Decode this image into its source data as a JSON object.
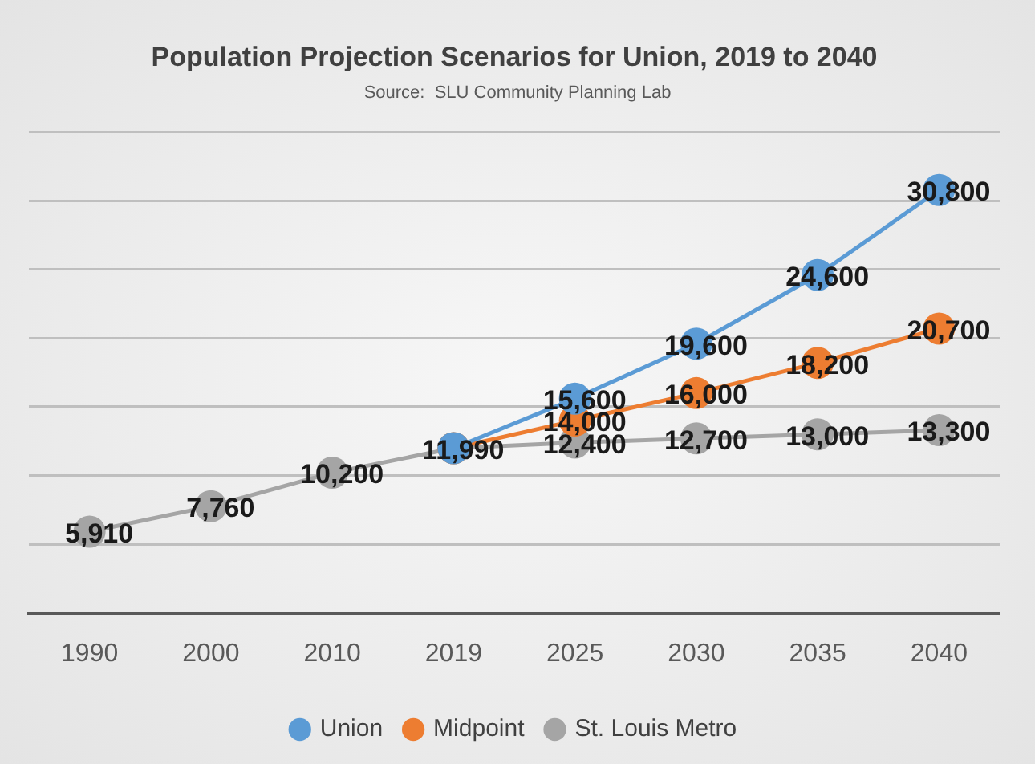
{
  "chart_data": {
    "type": "line",
    "title": "Population Projection Scenarios for Union, 2019 to 2040",
    "annotations": [
      "Source:  SLU Community Planning Lab"
    ],
    "categories": [
      "1990",
      "2000",
      "2010",
      "2019",
      "2025",
      "2030",
      "2035",
      "2040"
    ],
    "series": [
      {
        "name": "Union",
        "color": "#5b9bd5",
        "values": [
          null,
          null,
          null,
          11990,
          15600,
          19600,
          24600,
          30800
        ],
        "value_labels": [
          null,
          null,
          null,
          null,
          "15,600",
          "19,600",
          "24,600",
          "30,800"
        ]
      },
      {
        "name": "Midpoint",
        "color": "#ed7d31",
        "values": [
          null,
          null,
          null,
          11990,
          14000,
          16000,
          18200,
          20700
        ],
        "value_labels": [
          null,
          null,
          null,
          null,
          "14,000",
          "16,000",
          "18,200",
          "20,700"
        ]
      },
      {
        "name": "St. Louis Metro",
        "color": "#a5a5a5",
        "values": [
          5910,
          7760,
          10200,
          11990,
          12400,
          12700,
          13000,
          13300
        ],
        "value_labels": [
          "5,910",
          "7,760",
          "10,200",
          "11,990",
          "12,400",
          "12,700",
          "13,000",
          "13,300"
        ]
      }
    ],
    "tick_labels": "x",
    "grid": "y",
    "legend": "bottom",
    "marker": "circle"
  }
}
